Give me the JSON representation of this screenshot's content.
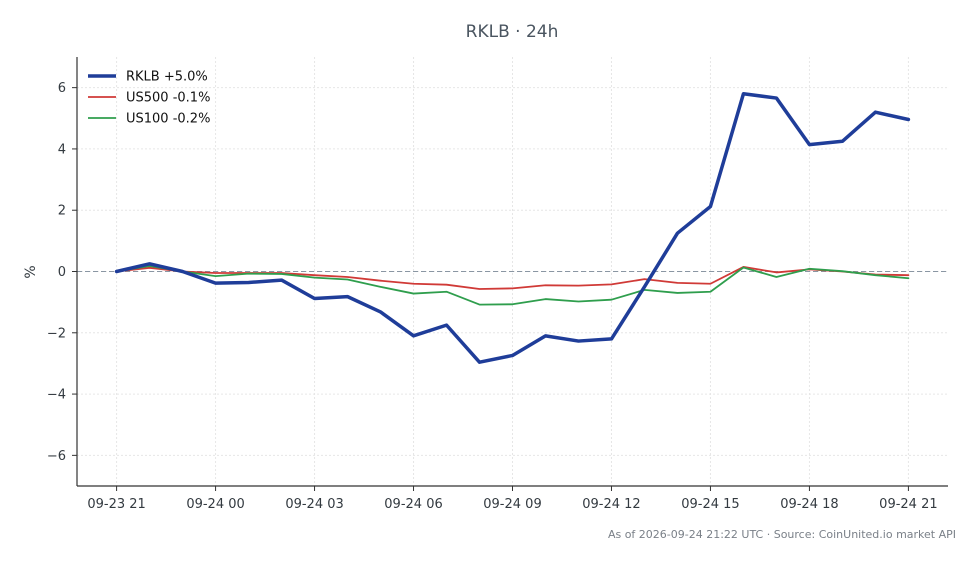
{
  "chart_data": {
    "type": "line",
    "title": "RKLB · 24h",
    "xlabel": "",
    "ylabel": "%",
    "x_tick_labels": [
      "09-23 21",
      "09-24 00",
      "09-24 03",
      "09-24 06",
      "09-24 09",
      "09-24 12",
      "09-24 15",
      "09-24 18",
      "09-24 21"
    ],
    "y_ticks": [
      -6,
      -4,
      -2,
      0,
      2,
      4,
      6
    ],
    "y_tick_labels": [
      "−6",
      "−4",
      "−2",
      "0",
      "2",
      "4",
      "6"
    ],
    "ylim": [
      -7,
      7
    ],
    "xlim_hours": [
      -1.2,
      25.2
    ],
    "grid": true,
    "zero_line": true,
    "legend_position": "top-left",
    "x_hours": [
      0,
      1,
      2,
      3,
      4,
      5,
      6,
      7,
      8,
      9,
      10,
      11,
      12,
      13,
      14,
      15,
      16,
      17,
      18,
      19,
      20,
      21,
      22,
      23,
      24
    ],
    "series": [
      {
        "name": "RKLB +5.0%",
        "color": "#1f3d99",
        "line_width": 3.5,
        "values": [
          0.0,
          0.25,
          0.0,
          -0.38,
          -0.36,
          -0.28,
          -0.88,
          -0.82,
          -1.32,
          -2.1,
          -1.75,
          -2.96,
          -2.74,
          -2.1,
          -2.27,
          -2.2,
          -0.5,
          1.25,
          2.12,
          5.8,
          5.66,
          4.14,
          4.25,
          5.2,
          4.96
        ]
      },
      {
        "name": "US500 -0.1%",
        "color": "#d03a37",
        "line_width": 1.8,
        "values": [
          0.0,
          0.12,
          0.0,
          -0.05,
          -0.05,
          -0.05,
          -0.12,
          -0.18,
          -0.3,
          -0.4,
          -0.43,
          -0.57,
          -0.55,
          -0.45,
          -0.46,
          -0.42,
          -0.25,
          -0.37,
          -0.4,
          0.15,
          -0.03,
          0.07,
          0.0,
          -0.1,
          -0.12
        ]
      },
      {
        "name": "US100 -0.2%",
        "color": "#2f9e4d",
        "line_width": 1.8,
        "values": [
          0.0,
          0.18,
          0.0,
          -0.15,
          -0.07,
          -0.08,
          -0.2,
          -0.26,
          -0.5,
          -0.72,
          -0.66,
          -1.08,
          -1.07,
          -0.9,
          -0.98,
          -0.92,
          -0.6,
          -0.7,
          -0.66,
          0.13,
          -0.18,
          0.09,
          0.01,
          -0.12,
          -0.22
        ]
      }
    ]
  },
  "footer": {
    "note": "As of 2026-09-24 21:22 UTC · Source: CoinUnited.io market API"
  }
}
